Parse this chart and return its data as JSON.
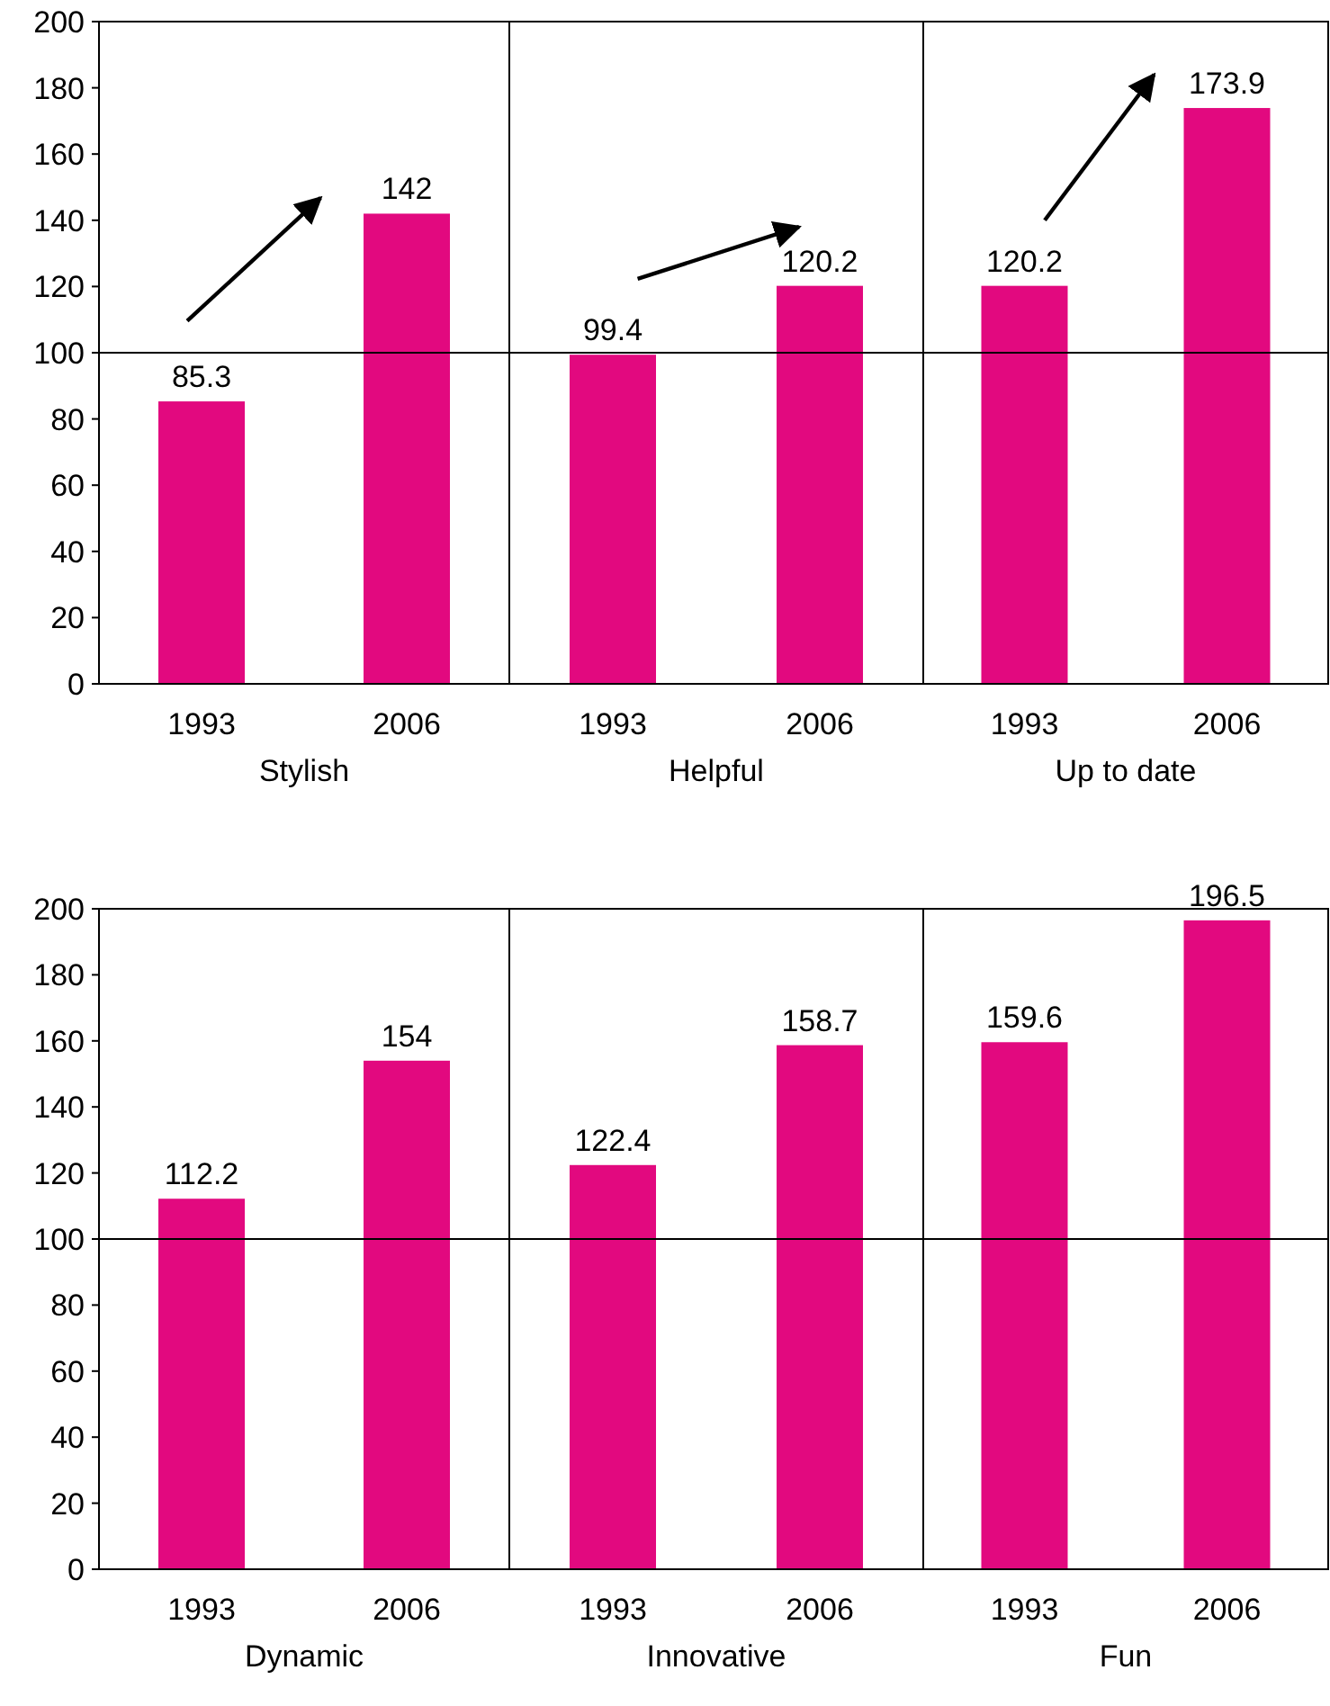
{
  "chart_data": [
    {
      "type": "bar",
      "xlabel": "Stylish",
      "categories": [
        "1993",
        "2006"
      ],
      "values": [
        85.3,
        142
      ],
      "color": "#e2097f",
      "ylim": [
        0,
        200
      ],
      "yticks": [
        0,
        20,
        40,
        60,
        80,
        100,
        120,
        140,
        160,
        180,
        200
      ],
      "ref_lines": [
        {
          "axis": "y",
          "value": 100,
          "color": "#000000"
        }
      ],
      "data_labels": true
    },
    {
      "type": "bar",
      "xlabel": "Helpful",
      "categories": [
        "1993",
        "2006"
      ],
      "values": [
        99.4,
        120.2
      ],
      "color": "#e2097f",
      "ylim": [
        0,
        200
      ],
      "yticks": [
        0,
        20,
        40,
        60,
        80,
        100,
        120,
        140,
        160,
        180,
        200
      ],
      "ref_lines": [
        {
          "axis": "y",
          "value": 100,
          "color": "#000000"
        }
      ],
      "data_labels": true,
      "tick_labels": "x"
    },
    {
      "type": "bar",
      "xlabel": "Up to date",
      "categories": [
        "1993",
        "2006"
      ],
      "values": [
        120.2,
        173.9
      ],
      "color": "#e2097f",
      "ylim": [
        0,
        200
      ],
      "yticks": [
        0,
        20,
        40,
        60,
        80,
        100,
        120,
        140,
        160,
        180,
        200
      ],
      "ref_lines": [
        {
          "axis": "y",
          "value": 100,
          "color": "#000000"
        }
      ],
      "data_labels": true,
      "tick_labels": "x"
    },
    {
      "type": "bar",
      "xlabel": "Dynamic",
      "categories": [
        "1993",
        "2006"
      ],
      "values": [
        112.2,
        154
      ],
      "color": "#e2097f",
      "ylim": [
        0,
        200
      ],
      "yticks": [
        0,
        20,
        40,
        60,
        80,
        100,
        120,
        140,
        160,
        180,
        200
      ],
      "ref_lines": [
        {
          "axis": "y",
          "value": 100,
          "color": "#000000"
        }
      ],
      "data_labels": true
    },
    {
      "type": "bar",
      "xlabel": "Innovative",
      "categories": [
        "1993",
        "2006"
      ],
      "values": [
        122.4,
        158.7
      ],
      "color": "#e2097f",
      "ylim": [
        0,
        200
      ],
      "yticks": [
        0,
        20,
        40,
        60,
        80,
        100,
        120,
        140,
        160,
        180,
        200
      ],
      "ref_lines": [
        {
          "axis": "y",
          "value": 100,
          "color": "#000000"
        }
      ],
      "data_labels": true,
      "tick_labels": "x"
    },
    {
      "type": "bar",
      "xlabel": "Fun",
      "categories": [
        "1993",
        "2006"
      ],
      "values": [
        159.6,
        196.5
      ],
      "color": "#e2097f",
      "ylim": [
        0,
        200
      ],
      "yticks": [
        0,
        20,
        40,
        60,
        80,
        100,
        120,
        140,
        160,
        180,
        200
      ],
      "ref_lines": [
        {
          "axis": "y",
          "value": 100,
          "color": "#000000"
        }
      ],
      "data_labels": true,
      "tick_labels": "x"
    }
  ]
}
